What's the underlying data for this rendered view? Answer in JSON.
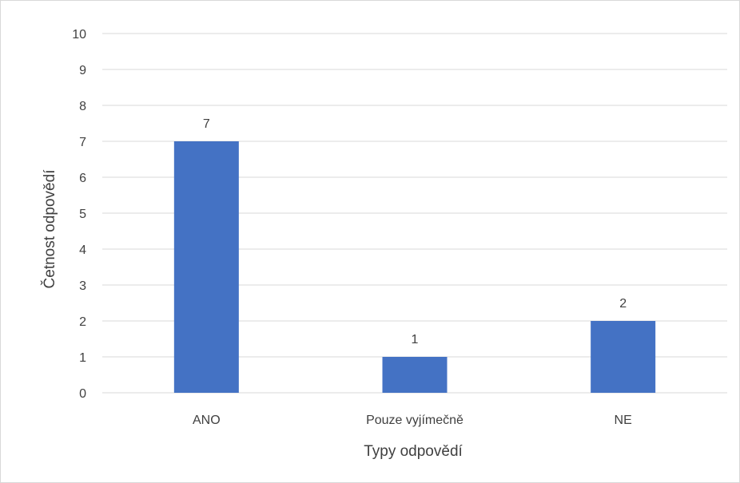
{
  "chart_data": {
    "type": "bar",
    "title": "",
    "xlabel": "Typy odpovědí",
    "ylabel": "Četnost odpovědí",
    "categories": [
      "ANO",
      "Pouze vyjímečně",
      "NE"
    ],
    "values": [
      7,
      1,
      2
    ],
    "data_labels": [
      "7",
      "1",
      "2"
    ],
    "ylim": [
      0,
      10
    ],
    "yticks": [
      0,
      1,
      2,
      3,
      4,
      5,
      6,
      7,
      8,
      9,
      10
    ],
    "grid": true,
    "legend": "none",
    "bar_color": "#4472C4",
    "grid_color": "#d9d9d9",
    "text_color": "#404040"
  }
}
